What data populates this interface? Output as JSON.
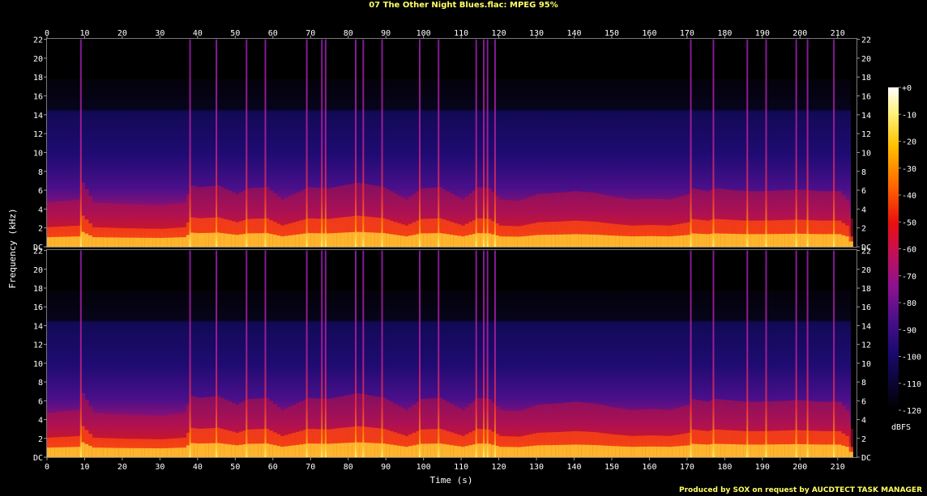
{
  "chart_data": {
    "type": "heatmap",
    "title": "07 The Other Night Blues.flac: MPEG 95%",
    "xlabel": "Time (s)",
    "ylabel": "Frequency (kHz)",
    "xlim": [
      0,
      215
    ],
    "ylim_khz": [
      0,
      22.05
    ],
    "x_ticks": [
      0,
      10,
      20,
      30,
      40,
      50,
      60,
      70,
      80,
      90,
      100,
      110,
      120,
      130,
      140,
      150,
      160,
      170,
      180,
      190,
      200,
      210
    ],
    "y_ticks": [
      "DC",
      "2",
      "4",
      "6",
      "8",
      "10",
      "12",
      "14",
      "16",
      "18",
      "20",
      "22"
    ],
    "channels": 2,
    "lowpass_cutoff_khz": 17.8,
    "colorbar": {
      "label": "dBFS",
      "ticks": [
        "+0",
        "-10",
        "-20",
        "-30",
        "-40",
        "-50",
        "-60",
        "-70",
        "-80",
        "-90",
        "-100",
        "-110",
        "-120"
      ],
      "range_db": [
        -120,
        0
      ]
    },
    "transients_s": [
      9,
      38,
      45,
      53,
      58,
      69,
      73,
      74,
      82,
      84,
      89,
      99,
      104,
      114,
      116,
      117,
      119,
      171,
      177,
      186,
      191,
      199,
      202,
      209
    ],
    "loudness_profile": {
      "t": [
        0,
        8,
        9,
        12,
        20,
        30,
        36,
        38,
        40,
        45,
        50,
        53,
        58,
        62,
        69,
        74,
        82,
        84,
        89,
        95,
        99,
        104,
        110,
        114,
        117,
        120,
        125,
        130,
        135,
        140,
        145,
        150,
        155,
        160,
        165,
        170,
        171,
        175,
        177,
        185,
        190,
        199,
        205,
        210,
        212,
        213.5
      ],
      "v": [
        0.45,
        0.5,
        0.8,
        0.45,
        0.42,
        0.4,
        0.45,
        0.75,
        0.72,
        0.75,
        0.6,
        0.7,
        0.72,
        0.5,
        0.72,
        0.7,
        0.8,
        0.78,
        0.72,
        0.5,
        0.7,
        0.72,
        0.5,
        0.72,
        0.7,
        0.5,
        0.48,
        0.6,
        0.62,
        0.65,
        0.62,
        0.55,
        0.5,
        0.52,
        0.5,
        0.6,
        0.7,
        0.65,
        0.7,
        0.65,
        0.65,
        0.68,
        0.65,
        0.65,
        0.5,
        0.0
      ]
    }
  },
  "footer": "Produced by SOX on request by AUCDTECT TASK MANAGER"
}
